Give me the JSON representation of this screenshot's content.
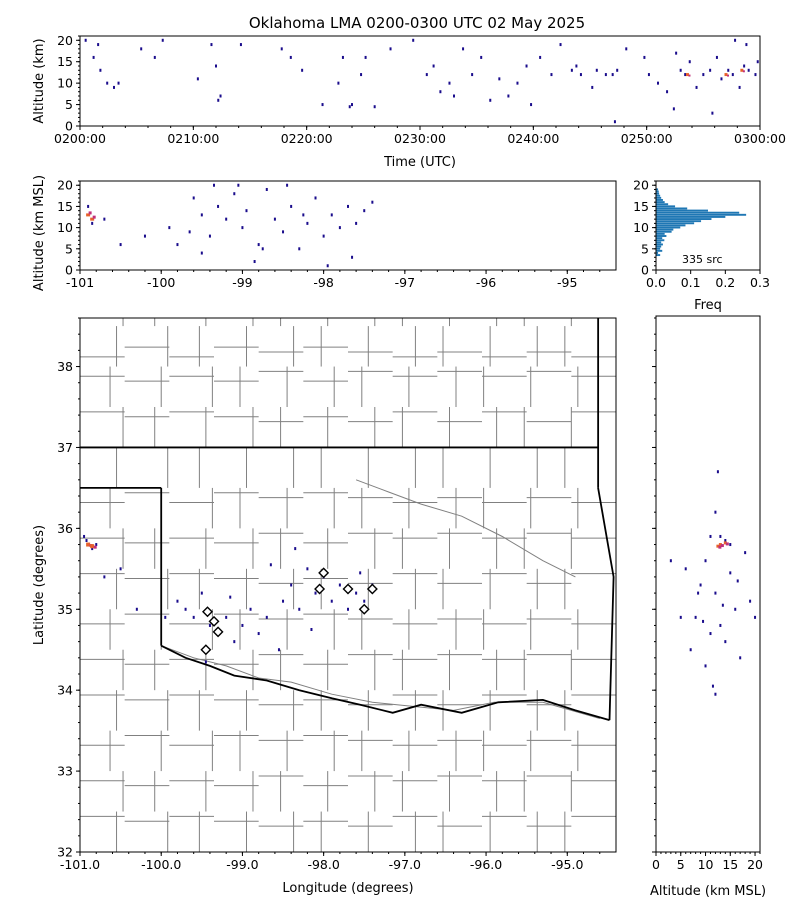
{
  "chart_data": [
    {
      "type": "scatter",
      "panel": "time-altitude",
      "title": "Oklahoma LMA 0200-0300 UTC 02 May 2025",
      "xlabel": "Time (UTC)",
      "ylabel": "Altitude (km)",
      "xlim": [
        "0200:00",
        "0300:00"
      ],
      "ylim": [
        0,
        21
      ],
      "x_ticks": [
        "0200:00",
        "0210:00",
        "0220:00",
        "0230:00",
        "0240:00",
        "0250:00",
        "0300:00"
      ],
      "y_ticks": [
        0,
        5,
        10,
        15,
        20
      ],
      "grid": false,
      "points": [
        {
          "t": 0.5,
          "alt": 20
        },
        {
          "t": 1.6,
          "alt": 19
        },
        {
          "t": 1.2,
          "alt": 16
        },
        {
          "t": 1.8,
          "alt": 13
        },
        {
          "t": 2.4,
          "alt": 10
        },
        {
          "t": 3.0,
          "alt": 9
        },
        {
          "t": 3.4,
          "alt": 10
        },
        {
          "t": 5.4,
          "alt": 18
        },
        {
          "t": 6.6,
          "alt": 16
        },
        {
          "t": 7.3,
          "alt": 20
        },
        {
          "t": 10.4,
          "alt": 11
        },
        {
          "t": 11.6,
          "alt": 19
        },
        {
          "t": 12.0,
          "alt": 14
        },
        {
          "t": 12.4,
          "alt": 7
        },
        {
          "t": 12.2,
          "alt": 6
        },
        {
          "t": 14.2,
          "alt": 19
        },
        {
          "t": 17.8,
          "alt": 18
        },
        {
          "t": 18.6,
          "alt": 16
        },
        {
          "t": 19.6,
          "alt": 13
        },
        {
          "t": 21.4,
          "alt": 5
        },
        {
          "t": 22.8,
          "alt": 10
        },
        {
          "t": 23.2,
          "alt": 16
        },
        {
          "t": 23.8,
          "alt": 4.5
        },
        {
          "t": 24.0,
          "alt": 5
        },
        {
          "t": 24.8,
          "alt": 12
        },
        {
          "t": 25.2,
          "alt": 16
        },
        {
          "t": 26.0,
          "alt": 4.5
        },
        {
          "t": 27.4,
          "alt": 18
        },
        {
          "t": 29.4,
          "alt": 20
        },
        {
          "t": 30.6,
          "alt": 12
        },
        {
          "t": 31.2,
          "alt": 14
        },
        {
          "t": 31.8,
          "alt": 8
        },
        {
          "t": 32.6,
          "alt": 10
        },
        {
          "t": 33.0,
          "alt": 7
        },
        {
          "t": 33.8,
          "alt": 18
        },
        {
          "t": 34.6,
          "alt": 12
        },
        {
          "t": 35.4,
          "alt": 16
        },
        {
          "t": 36.2,
          "alt": 6
        },
        {
          "t": 37.0,
          "alt": 11
        },
        {
          "t": 37.8,
          "alt": 7
        },
        {
          "t": 38.6,
          "alt": 10
        },
        {
          "t": 39.4,
          "alt": 14
        },
        {
          "t": 39.8,
          "alt": 5
        },
        {
          "t": 40.6,
          "alt": 16
        },
        {
          "t": 41.6,
          "alt": 12
        },
        {
          "t": 42.4,
          "alt": 19
        },
        {
          "t": 43.4,
          "alt": 13
        },
        {
          "t": 43.8,
          "alt": 14
        },
        {
          "t": 44.2,
          "alt": 12
        },
        {
          "t": 45.2,
          "alt": 9
        },
        {
          "t": 45.6,
          "alt": 13
        },
        {
          "t": 46.4,
          "alt": 12
        },
        {
          "t": 47.0,
          "alt": 12
        },
        {
          "t": 47.4,
          "alt": 13
        },
        {
          "t": 47.2,
          "alt": 1
        },
        {
          "t": 48.2,
          "alt": 18
        },
        {
          "t": 49.8,
          "alt": 16
        },
        {
          "t": 50.2,
          "alt": 12
        },
        {
          "t": 51.0,
          "alt": 10
        },
        {
          "t": 51.8,
          "alt": 8
        },
        {
          "t": 52.4,
          "alt": 4
        },
        {
          "t": 52.6,
          "alt": 17
        },
        {
          "t": 53.0,
          "alt": 13
        },
        {
          "t": 53.4,
          "alt": 12
        },
        {
          "t": 53.8,
          "alt": 15
        },
        {
          "t": 54.4,
          "alt": 9
        },
        {
          "t": 55.0,
          "alt": 12
        },
        {
          "t": 55.6,
          "alt": 13
        },
        {
          "t": 56.2,
          "alt": 16
        },
        {
          "t": 56.6,
          "alt": 11
        },
        {
          "t": 57.2,
          "alt": 13
        },
        {
          "t": 57.6,
          "alt": 12
        },
        {
          "t": 58.2,
          "alt": 9
        },
        {
          "t": 58.6,
          "alt": 14
        },
        {
          "t": 59.0,
          "alt": 13
        },
        {
          "t": 59.6,
          "alt": 12
        },
        {
          "t": 59.8,
          "alt": 15
        },
        {
          "t": 55.8,
          "alt": 3
        },
        {
          "t": 58.8,
          "alt": 19
        },
        {
          "t": 57.8,
          "alt": 20
        }
      ],
      "hot_spots": [
        {
          "t": 58.4,
          "alt": 13
        },
        {
          "t": 57.0,
          "alt": 12
        },
        {
          "t": 53.6,
          "alt": 12
        }
      ]
    },
    {
      "type": "scatter",
      "panel": "lon-altitude",
      "xlabel": "",
      "ylabel": "Altitude (km MSL)",
      "xlim": [
        -101,
        -94.4
      ],
      "ylim": [
        0,
        21
      ],
      "x_ticks": [
        "-101",
        "-100",
        "-99",
        "-98",
        "-97",
        "-96",
        "-95"
      ],
      "y_ticks": [
        0,
        5,
        10,
        15,
        20
      ],
      "points": [
        {
          "lon": -100.9,
          "alt": 15
        },
        {
          "lon": -100.85,
          "alt": 11
        },
        {
          "lon": -100.7,
          "alt": 12
        },
        {
          "lon": -100.5,
          "alt": 6
        },
        {
          "lon": -100.2,
          "alt": 8
        },
        {
          "lon": -99.9,
          "alt": 10
        },
        {
          "lon": -99.8,
          "alt": 6
        },
        {
          "lon": -99.6,
          "alt": 17
        },
        {
          "lon": -99.5,
          "alt": 13
        },
        {
          "lon": -99.4,
          "alt": 8
        },
        {
          "lon": -99.3,
          "alt": 15
        },
        {
          "lon": -99.2,
          "alt": 12
        },
        {
          "lon": -99.1,
          "alt": 18
        },
        {
          "lon": -99.0,
          "alt": 10
        },
        {
          "lon": -98.95,
          "alt": 14
        },
        {
          "lon": -98.8,
          "alt": 6
        },
        {
          "lon": -98.7,
          "alt": 19
        },
        {
          "lon": -98.6,
          "alt": 12
        },
        {
          "lon": -98.5,
          "alt": 9
        },
        {
          "lon": -98.4,
          "alt": 15
        },
        {
          "lon": -98.3,
          "alt": 5
        },
        {
          "lon": -98.2,
          "alt": 11
        },
        {
          "lon": -98.1,
          "alt": 17
        },
        {
          "lon": -98.0,
          "alt": 8
        },
        {
          "lon": -97.9,
          "alt": 13
        },
        {
          "lon": -97.8,
          "alt": 10
        },
        {
          "lon": -97.7,
          "alt": 15
        },
        {
          "lon": -97.6,
          "alt": 11
        },
        {
          "lon": -97.5,
          "alt": 14
        },
        {
          "lon": -97.4,
          "alt": 16
        },
        {
          "lon": -99.35,
          "alt": 20
        },
        {
          "lon": -99.5,
          "alt": 4
        },
        {
          "lon": -98.45,
          "alt": 20
        },
        {
          "lon": -97.95,
          "alt": 1
        },
        {
          "lon": -97.65,
          "alt": 3
        },
        {
          "lon": -98.85,
          "alt": 2
        },
        {
          "lon": -99.05,
          "alt": 20
        },
        {
          "lon": -99.65,
          "alt": 9
        },
        {
          "lon": -98.25,
          "alt": 13
        },
        {
          "lon": -98.75,
          "alt": 5
        }
      ],
      "hot_spots": [
        {
          "lon": -100.9,
          "alt": 13
        },
        {
          "lon": -100.85,
          "alt": 12
        }
      ]
    },
    {
      "type": "bar",
      "panel": "altitude-histogram",
      "xlabel": "Freq",
      "ylabel": "",
      "xlim": [
        0,
        0.3
      ],
      "ylim": [
        0,
        21
      ],
      "x_ticks": [
        "0.0",
        "0.1",
        "0.2",
        "0.3"
      ],
      "y_ticks": [
        0,
        5,
        10,
        15,
        20
      ],
      "annotation": "335 src",
      "color": "#1f77b4",
      "bins": [
        {
          "alt": 3.5,
          "freq": 0.012
        },
        {
          "alt": 4.0,
          "freq": 0.006
        },
        {
          "alt": 4.5,
          "freq": 0.018
        },
        {
          "alt": 5.0,
          "freq": 0.012
        },
        {
          "alt": 5.5,
          "freq": 0.015
        },
        {
          "alt": 6.0,
          "freq": 0.02
        },
        {
          "alt": 6.5,
          "freq": 0.015
        },
        {
          "alt": 7.0,
          "freq": 0.024
        },
        {
          "alt": 7.5,
          "freq": 0.018
        },
        {
          "alt": 8.0,
          "freq": 0.03
        },
        {
          "alt": 8.5,
          "freq": 0.025
        },
        {
          "alt": 9.0,
          "freq": 0.045
        },
        {
          "alt": 9.5,
          "freq": 0.05
        },
        {
          "alt": 10.0,
          "freq": 0.07
        },
        {
          "alt": 10.5,
          "freq": 0.085
        },
        {
          "alt": 11.0,
          "freq": 0.11
        },
        {
          "alt": 11.5,
          "freq": 0.13
        },
        {
          "alt": 12.0,
          "freq": 0.16
        },
        {
          "alt": 12.5,
          "freq": 0.2
        },
        {
          "alt": 13.0,
          "freq": 0.26
        },
        {
          "alt": 13.5,
          "freq": 0.24
        },
        {
          "alt": 14.0,
          "freq": 0.15
        },
        {
          "alt": 14.5,
          "freq": 0.09
        },
        {
          "alt": 15.0,
          "freq": 0.055
        },
        {
          "alt": 15.5,
          "freq": 0.035
        },
        {
          "alt": 16.0,
          "freq": 0.025
        },
        {
          "alt": 16.5,
          "freq": 0.02
        },
        {
          "alt": 17.0,
          "freq": 0.015
        },
        {
          "alt": 17.5,
          "freq": 0.012
        },
        {
          "alt": 18.0,
          "freq": 0.009
        },
        {
          "alt": 18.5,
          "freq": 0.008
        },
        {
          "alt": 19.0,
          "freq": 0.006
        }
      ]
    },
    {
      "type": "scatter",
      "panel": "plan-view-map",
      "xlabel": "Longitude (degrees)",
      "ylabel": "Latitude (degrees)",
      "xlim": [
        -101,
        -94.4
      ],
      "ylim": [
        32,
        38.6
      ],
      "x_ticks": [
        "-101.0",
        "-100.0",
        "-99.0",
        "-98.0",
        "-97.0",
        "-96.0",
        "-95.0"
      ],
      "y_ticks": [
        "32",
        "33",
        "34",
        "35",
        "36",
        "37",
        "38"
      ],
      "points": [
        {
          "lon": -100.95,
          "lat": 35.9
        },
        {
          "lon": -100.9,
          "lat": 35.8
        },
        {
          "lon": -100.85,
          "lat": 35.75
        },
        {
          "lon": -100.92,
          "lat": 35.85
        },
        {
          "lon": -100.8,
          "lat": 35.8
        },
        {
          "lon": -100.7,
          "lat": 35.4
        },
        {
          "lon": -100.5,
          "lat": 35.5
        },
        {
          "lon": -99.8,
          "lat": 35.1
        },
        {
          "lon": -99.7,
          "lat": 35.0
        },
        {
          "lon": -99.6,
          "lat": 34.9
        },
        {
          "lon": -99.5,
          "lat": 35.2
        },
        {
          "lon": -99.4,
          "lat": 34.8
        },
        {
          "lon": -99.3,
          "lat": 34.7
        },
        {
          "lon": -99.2,
          "lat": 34.9
        },
        {
          "lon": -99.1,
          "lat": 34.6
        },
        {
          "lon": -99.0,
          "lat": 34.8
        },
        {
          "lon": -98.9,
          "lat": 35.0
        },
        {
          "lon": -98.8,
          "lat": 34.7
        },
        {
          "lon": -98.7,
          "lat": 34.9
        },
        {
          "lon": -98.5,
          "lat": 35.1
        },
        {
          "lon": -98.4,
          "lat": 35.3
        },
        {
          "lon": -98.3,
          "lat": 35.0
        },
        {
          "lon": -98.2,
          "lat": 35.5
        },
        {
          "lon": -98.1,
          "lat": 35.2
        },
        {
          "lon": -98.0,
          "lat": 35.4
        },
        {
          "lon": -97.9,
          "lat": 35.1
        },
        {
          "lon": -97.8,
          "lat": 35.3
        },
        {
          "lon": -97.7,
          "lat": 35.0
        },
        {
          "lon": -97.6,
          "lat": 35.2
        },
        {
          "lon": -97.5,
          "lat": 35.1
        },
        {
          "lon": -97.4,
          "lat": 35.3
        },
        {
          "lon": -98.35,
          "lat": 35.75
        },
        {
          "lon": -98.55,
          "lat": 34.5
        },
        {
          "lon": -99.45,
          "lat": 34.35
        },
        {
          "lon": -100.3,
          "lat": 35.0
        },
        {
          "lon": -99.95,
          "lat": 34.9
        },
        {
          "lon": -98.15,
          "lat": 34.75
        },
        {
          "lon": -97.55,
          "lat": 35.45
        },
        {
          "lon": -98.65,
          "lat": 35.55
        },
        {
          "lon": -99.15,
          "lat": 35.15
        }
      ],
      "hot_spots": [
        {
          "lon": -100.9,
          "lat": 35.8
        },
        {
          "lon": -100.85,
          "lat": 35.78
        }
      ],
      "stations": [
        {
          "lon": -99.43,
          "lat": 34.97
        },
        {
          "lon": -99.35,
          "lat": 34.85
        },
        {
          "lon": -99.3,
          "lat": 34.72
        },
        {
          "lon": -99.45,
          "lat": 34.5
        },
        {
          "lon": -98.0,
          "lat": 35.45
        },
        {
          "lon": -98.05,
          "lat": 35.25
        },
        {
          "lon": -97.7,
          "lat": 35.25
        },
        {
          "lon": -97.4,
          "lat": 35.25
        },
        {
          "lon": -97.5,
          "lat": 35.0
        }
      ]
    },
    {
      "type": "scatter",
      "panel": "altitude-latitude",
      "xlabel": "Altitude (km MSL)",
      "ylabel": "",
      "xlim": [
        0,
        21
      ],
      "ylim": [
        32,
        38.6
      ],
      "x_ticks": [
        "0",
        "5",
        "10",
        "15",
        "20"
      ],
      "points": [
        {
          "alt": 12,
          "lat": 36.2
        },
        {
          "alt": 13,
          "lat": 35.9
        },
        {
          "alt": 14,
          "lat": 35.85
        },
        {
          "alt": 11,
          "lat": 35.9
        },
        {
          "alt": 15,
          "lat": 35.8
        },
        {
          "alt": 10,
          "lat": 35.6
        },
        {
          "alt": 9,
          "lat": 35.3
        },
        {
          "alt": 12,
          "lat": 35.2
        },
        {
          "alt": 16,
          "lat": 35.0
        },
        {
          "alt": 8,
          "lat": 34.9
        },
        {
          "alt": 13,
          "lat": 34.8
        },
        {
          "alt": 11,
          "lat": 34.7
        },
        {
          "alt": 14,
          "lat": 34.6
        },
        {
          "alt": 7,
          "lat": 34.5
        },
        {
          "alt": 17,
          "lat": 34.4
        },
        {
          "alt": 10,
          "lat": 34.3
        },
        {
          "alt": 19,
          "lat": 35.1
        },
        {
          "alt": 20,
          "lat": 34.9
        },
        {
          "alt": 5,
          "lat": 34.9
        },
        {
          "alt": 6,
          "lat": 35.5
        },
        {
          "alt": 3,
          "lat": 35.6
        },
        {
          "alt": 18,
          "lat": 35.7
        },
        {
          "alt": 15,
          "lat": 35.45
        },
        {
          "alt": 12.5,
          "lat": 36.7
        },
        {
          "alt": 11.5,
          "lat": 34.05
        },
        {
          "alt": 16.5,
          "lat": 35.35
        },
        {
          "alt": 9.5,
          "lat": 34.85
        },
        {
          "alt": 13.5,
          "lat": 35.05
        },
        {
          "alt": 8.5,
          "lat": 35.2
        },
        {
          "alt": 12,
          "lat": 33.95
        }
      ],
      "hot_spots": [
        {
          "alt": 13,
          "lat": 35.8
        },
        {
          "alt": 14,
          "lat": 35.82
        },
        {
          "alt": 12.5,
          "lat": 35.78
        }
      ]
    }
  ]
}
